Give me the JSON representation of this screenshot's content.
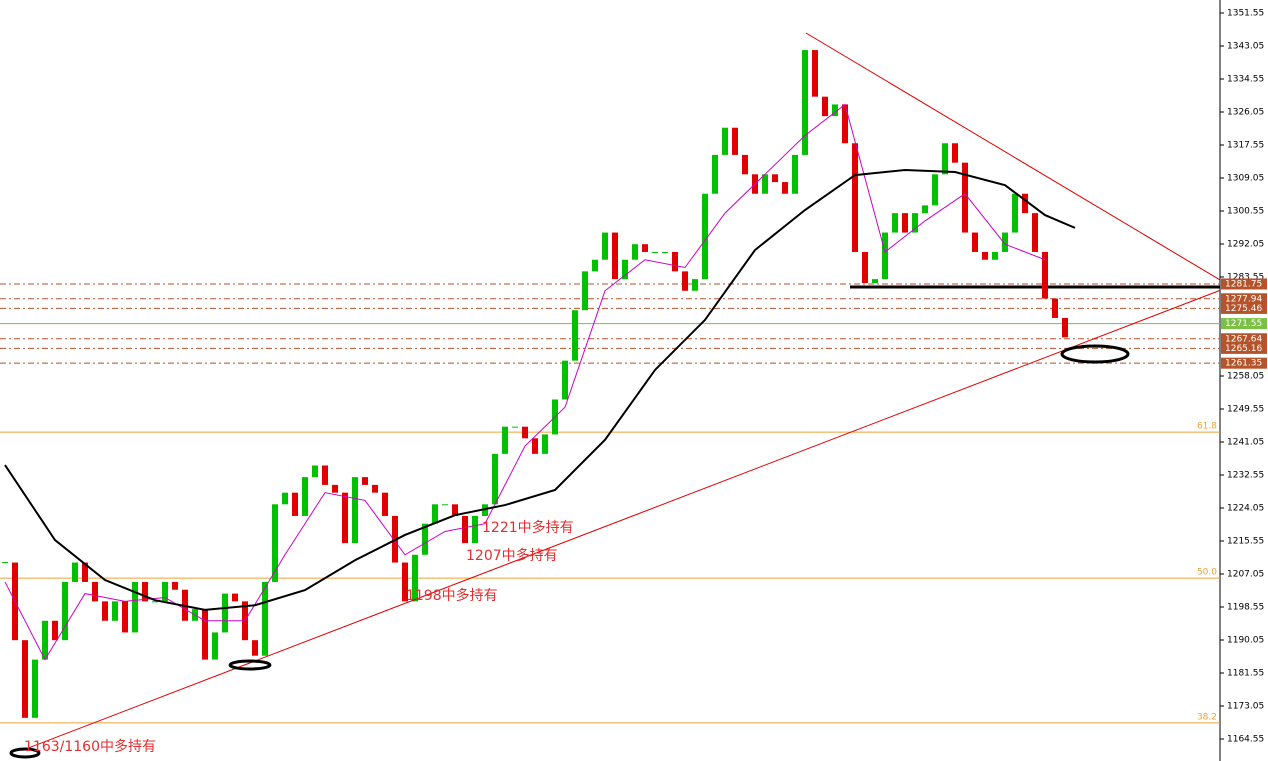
{
  "chart_data": {
    "type": "candlestick",
    "up_color": "#00c000",
    "down_color": "#e00000",
    "xlim": [
      -0.5,
      121.5
    ],
    "ylim": [
      1158.88,
      1354.9
    ],
    "yticks": [
      1164.55,
      1173.05,
      1181.55,
      1190.05,
      1198.55,
      1207.05,
      1215.55,
      1224.05,
      1232.55,
      1241.05,
      1249.55,
      1258.05,
      1283.55,
      1292.05,
      1300.55,
      1309.05,
      1317.55,
      1326.05,
      1334.55,
      1343.05,
      1351.55
    ],
    "series": [
      {
        "values": [
          1210,
          1190,
          1170,
          1185,
          1195,
          1190,
          1205,
          1210,
          1205,
          1200,
          1195,
          1200,
          1192,
          1205,
          1200,
          1200,
          1205,
          1203,
          1195,
          1198,
          1185,
          1192,
          1202,
          1200,
          1190,
          1186,
          1205,
          1225,
          1228,
          1222,
          1232,
          1235,
          1230,
          1228,
          1215,
          1232,
          1230,
          1228,
          1222,
          1210,
          1200,
          1212,
          1220,
          1225,
          1225,
          1222,
          1215,
          1222,
          1225,
          1238,
          1245,
          1245,
          1242,
          1238,
          1243,
          1252,
          1262,
          1275,
          1285,
          1288,
          1295,
          1283,
          1288,
          1292,
          1290,
          1290,
          1290,
          1285,
          1280,
          1283,
          1305,
          1315,
          1322,
          1315,
          1310,
          1305,
          1310,
          1308,
          1305,
          1315,
          1342,
          1330,
          1325,
          1328,
          1318,
          1290,
          1282,
          1283,
          1295,
          1300,
          1295,
          1300,
          1302,
          1310,
          1318,
          1313,
          1295,
          1290,
          1288,
          1290,
          1295,
          1305,
          1300,
          1290,
          1278,
          1273,
          1268
        ]
      },
      {
        "color": "#cc00cc",
        "x": [
          0,
          4,
          8,
          12,
          16,
          20,
          24,
          28,
          32,
          36,
          40,
          44,
          48,
          52,
          56,
          60,
          64,
          68,
          72,
          76,
          80,
          84,
          88,
          92,
          96,
          100,
          104
        ],
        "values": [
          1205,
          1185,
          1202,
          1200,
          1201,
          1195,
          1195,
          1212,
          1228,
          1226,
          1212,
          1218,
          1220,
          1240,
          1250,
          1280,
          1288,
          1286,
          1300,
          1310,
          1320,
          1328,
          1290,
          1298,
          1305,
          1292,
          1288
        ]
      },
      {
        "color": "#000000",
        "x": [
          0,
          5,
          10,
          15,
          20,
          25,
          30,
          35,
          40,
          45,
          50,
          55,
          60,
          65,
          70,
          75,
          80,
          85,
          90,
          95,
          100,
          104,
          107
        ],
        "values": [
          1235.1,
          1215.8,
          1205.5,
          1200.3,
          1197.8,
          1199.0,
          1202.9,
          1210.6,
          1217.1,
          1222.2,
          1224.8,
          1228.7,
          1241.6,
          1259.6,
          1272.5,
          1290.5,
          1300.8,
          1309.8,
          1311.1,
          1310.6,
          1307.2,
          1299.5,
          1296.2
        ]
      }
    ],
    "trendlines": [
      {
        "color": "#e00000",
        "x": [
          1.7,
          121.5
        ],
        "values": [
          1161.6,
          1280.1
        ]
      },
      {
        "color": "#e00000",
        "x": [
          80.1,
          121.5
        ],
        "values": [
          1346.4,
          1282.8
        ]
      }
    ],
    "levels": [
      {
        "value": 1281.75,
        "color": "#b5532b"
      },
      {
        "value": 1277.94,
        "color": "#b5532b"
      },
      {
        "value": 1275.46,
        "color": "#b5532b"
      },
      {
        "value": 1271.55,
        "color": "#7ac143"
      },
      {
        "value": 1267.64,
        "color": "#b5532b"
      },
      {
        "value": 1265.16,
        "color": "#b5532b"
      },
      {
        "value": 1261.35,
        "color": "#b5532b"
      }
    ],
    "fib_levels": [
      {
        "label": "61.8",
        "price": 1243.6
      },
      {
        "label": "50.0",
        "price": 1206.0
      },
      {
        "label": "38.2",
        "price": 1168.7
      }
    ],
    "fib_color": "#f0a030",
    "annotations": [
      "1221中多持有",
      "1207中多持有",
      "1198中多持有",
      "1163/1160中多持有"
    ]
  }
}
